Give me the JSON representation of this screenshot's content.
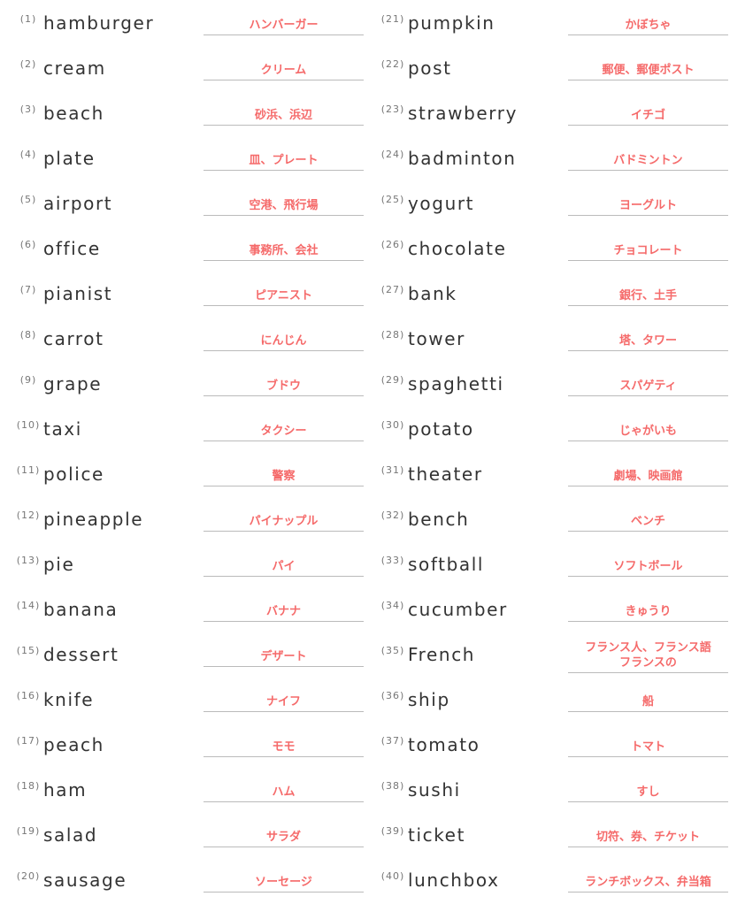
{
  "answer_color": "#f56a6a",
  "items": [
    {
      "num": "(1)",
      "word": "hamburger",
      "answer": "ハンバーガー"
    },
    {
      "num": "(2)",
      "word": "cream",
      "answer": "クリーム"
    },
    {
      "num": "(3)",
      "word": "beach",
      "answer": "砂浜、浜辺"
    },
    {
      "num": "(4)",
      "word": "plate",
      "answer": "皿、プレート"
    },
    {
      "num": "(5)",
      "word": "airport",
      "answer": "空港、飛行場"
    },
    {
      "num": "(6)",
      "word": "office",
      "answer": "事務所、会社"
    },
    {
      "num": "(7)",
      "word": "pianist",
      "answer": "ピアニスト"
    },
    {
      "num": "(8)",
      "word": "carrot",
      "answer": "にんじん"
    },
    {
      "num": "(9)",
      "word": "grape",
      "answer": "ブドウ"
    },
    {
      "num": "(10)",
      "word": "taxi",
      "answer": "タクシー"
    },
    {
      "num": "(11)",
      "word": "police",
      "answer": "警察"
    },
    {
      "num": "(12)",
      "word": "pineapple",
      "answer": "パイナップル"
    },
    {
      "num": "(13)",
      "word": "pie",
      "answer": "パイ"
    },
    {
      "num": "(14)",
      "word": "banana",
      "answer": "バナナ"
    },
    {
      "num": "(15)",
      "word": "dessert",
      "answer": "デザート"
    },
    {
      "num": "(16)",
      "word": "knife",
      "answer": "ナイフ"
    },
    {
      "num": "(17)",
      "word": "peach",
      "answer": "モモ"
    },
    {
      "num": "(18)",
      "word": "ham",
      "answer": "ハム"
    },
    {
      "num": "(19)",
      "word": "salad",
      "answer": "サラダ"
    },
    {
      "num": "(20)",
      "word": "sausage",
      "answer": "ソーセージ"
    },
    {
      "num": "(21)",
      "word": "pumpkin",
      "answer": "かぼちゃ"
    },
    {
      "num": "(22)",
      "word": "post",
      "answer": "郵便、郵便ポスト"
    },
    {
      "num": "(23)",
      "word": "strawberry",
      "answer": "イチゴ"
    },
    {
      "num": "(24)",
      "word": "badminton",
      "answer": "バドミントン"
    },
    {
      "num": "(25)",
      "word": "yogurt",
      "answer": "ヨーグルト"
    },
    {
      "num": "(26)",
      "word": "chocolate",
      "answer": "チョコレート"
    },
    {
      "num": "(27)",
      "word": "bank",
      "answer": "銀行、土手"
    },
    {
      "num": "(28)",
      "word": "tower",
      "answer": "塔、タワー"
    },
    {
      "num": "(29)",
      "word": "spaghetti",
      "answer": "スパゲティ"
    },
    {
      "num": "(30)",
      "word": "potato",
      "answer": "じゃがいも"
    },
    {
      "num": "(31)",
      "word": "theater",
      "answer": "劇場、映画館"
    },
    {
      "num": "(32)",
      "word": "bench",
      "answer": "ベンチ"
    },
    {
      "num": "(33)",
      "word": "softball",
      "answer": "ソフトボール"
    },
    {
      "num": "(34)",
      "word": "cucumber",
      "answer": "きゅうり"
    },
    {
      "num": "(35)",
      "word": "French",
      "answer": "フランス人、フランス語\nフランスの"
    },
    {
      "num": "(36)",
      "word": "ship",
      "answer": "船"
    },
    {
      "num": "(37)",
      "word": "tomato",
      "answer": "トマト"
    },
    {
      "num": "(38)",
      "word": "sushi",
      "answer": "すし"
    },
    {
      "num": "(39)",
      "word": "ticket",
      "answer": "切符、券、チケット"
    },
    {
      "num": "(40)",
      "word": "lunchbox",
      "answer": "ランチボックス、弁当箱"
    }
  ]
}
